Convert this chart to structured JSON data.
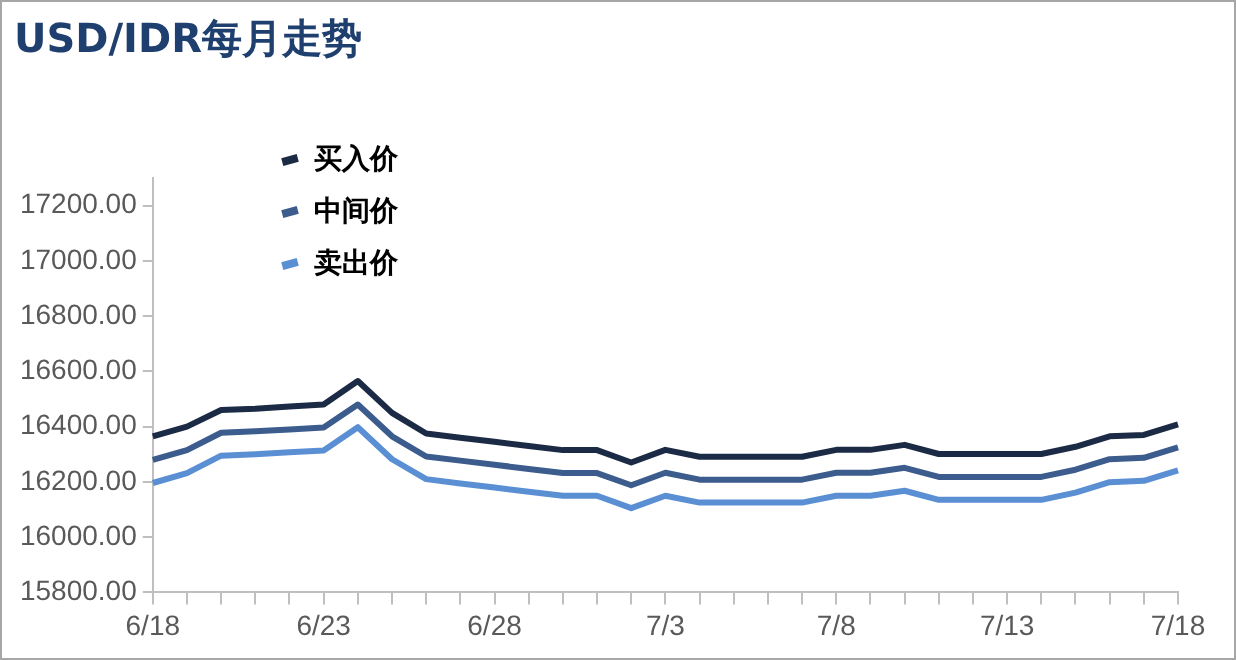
{
  "chart_data": {
    "type": "line",
    "title": "USD/IDR每月走势",
    "categories": [
      "6/18",
      null,
      null,
      null,
      null,
      "6/23",
      null,
      null,
      null,
      null,
      "6/28",
      null,
      null,
      null,
      null,
      "7/3",
      null,
      null,
      null,
      null,
      "7/8",
      null,
      null,
      null,
      null,
      "7/13",
      null,
      null,
      null,
      null,
      "7/18"
    ],
    "series": [
      {
        "name": "买入价",
        "color": "#1b2a45",
        "values": [
          16365,
          16400,
          16460,
          16465,
          16473,
          16480,
          16565,
          16450,
          16375,
          16360,
          16345,
          16330,
          16315,
          16315,
          16270,
          16316,
          16291,
          16291,
          16291,
          16291,
          16316,
          16316,
          16334,
          16301,
          16301,
          16301,
          16301,
          16327,
          16365,
          16370,
          16408
        ]
      },
      {
        "name": "中间价",
        "color": "#3b5c8c",
        "values": [
          16280,
          16315,
          16378,
          16383,
          16390,
          16397,
          16480,
          16365,
          16292,
          16277,
          16262,
          16247,
          16232,
          16232,
          16188,
          16233,
          16208,
          16208,
          16208,
          16208,
          16233,
          16233,
          16251,
          16218,
          16218,
          16218,
          16218,
          16244,
          16282,
          16287,
          16325
        ]
      },
      {
        "name": "卖出价",
        "color": "#5b8fd4",
        "values": [
          16196,
          16232,
          16295,
          16300,
          16307,
          16314,
          16398,
          16282,
          16210,
          16194,
          16180,
          16164,
          16150,
          16150,
          16105,
          16150,
          16125,
          16125,
          16125,
          16125,
          16150,
          16150,
          16168,
          16135,
          16135,
          16135,
          16135,
          16161,
          16199,
          16204,
          16242
        ]
      }
    ],
    "ylim": [
      15800,
      17300
    ],
    "yticks": [
      {
        "value": 15800,
        "label": "15800.00"
      },
      {
        "value": 16000,
        "label": "16000.00"
      },
      {
        "value": 16200,
        "label": "16200.00"
      },
      {
        "value": 16400,
        "label": "16400.00"
      },
      {
        "value": 16600,
        "label": "16600.00"
      },
      {
        "value": 16800,
        "label": "16800.00"
      },
      {
        "value": 17000,
        "label": "17000.00"
      },
      {
        "value": 17200,
        "label": "17200.00"
      }
    ],
    "grid": false,
    "legend": "top",
    "marker": "none",
    "line_style": "solid"
  }
}
